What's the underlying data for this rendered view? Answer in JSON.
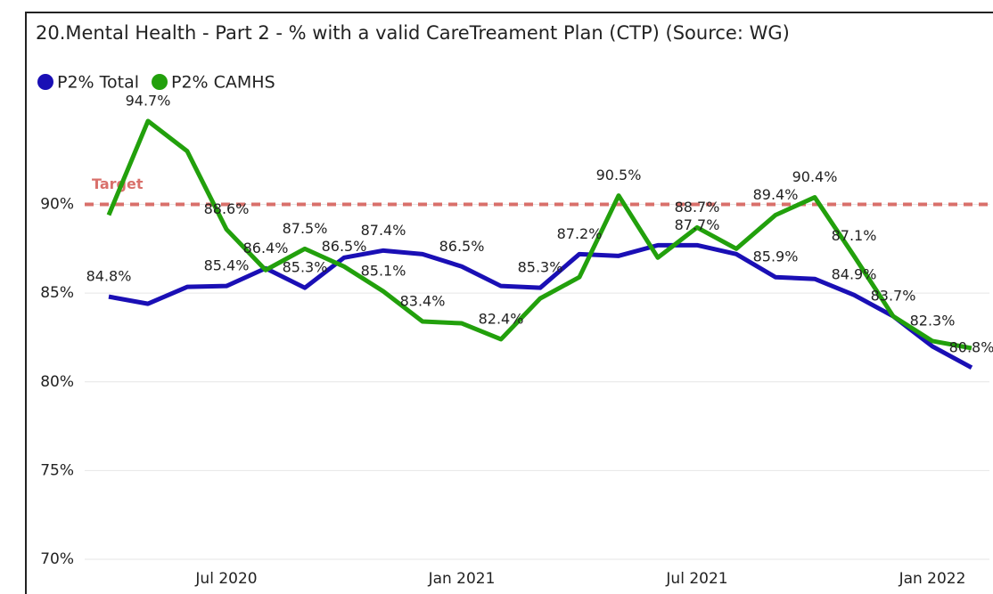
{
  "chart_data": {
    "type": "line",
    "title": "20.Mental Health - Part 2 - % with a valid CareTreament Plan (CTP) (Source: WG)",
    "categories": [
      null,
      null,
      null,
      "Jul 2020",
      null,
      null,
      null,
      null,
      null,
      "Jan 2021",
      null,
      null,
      null,
      null,
      null,
      "Jul 2021",
      null,
      null,
      null,
      null,
      null,
      "Jan 2022",
      null
    ],
    "series": [
      {
        "name": "P2% Total",
        "color": "#1a0fb5",
        "values": [
          84.8,
          84.4,
          85.35,
          85.4,
          86.4,
          85.3,
          87.0,
          87.4,
          87.2,
          86.5,
          85.4,
          85.3,
          87.2,
          87.1,
          87.7,
          87.7,
          87.2,
          85.9,
          85.8,
          84.9,
          83.7,
          82.0,
          80.8
        ],
        "value_labels": [
          "84.8%",
          null,
          null,
          "85.4%",
          "86.4%",
          "85.3%",
          null,
          "87.4%",
          null,
          "86.5%",
          null,
          "85.3%",
          "87.2%",
          null,
          null,
          "87.7%",
          null,
          "85.9%",
          null,
          "84.9%",
          null,
          null,
          "80.8%"
        ]
      },
      {
        "name": "P2% CAMHS",
        "color": "#22a00c",
        "values": [
          89.4,
          94.7,
          93.0,
          88.6,
          86.3,
          87.5,
          86.5,
          85.1,
          83.4,
          83.3,
          82.4,
          84.7,
          85.9,
          90.5,
          87.0,
          88.7,
          87.5,
          89.4,
          90.4,
          87.1,
          83.7,
          82.3,
          81.9
        ],
        "value_labels": [
          null,
          "94.7%",
          null,
          "88.6%",
          null,
          "87.5%",
          "86.5%",
          "85.1%",
          "83.4%",
          null,
          "82.4%",
          null,
          null,
          "90.5%",
          null,
          "88.7%",
          null,
          "89.4%",
          "90.4%",
          "87.1%",
          "83.7%",
          "82.3%",
          null
        ]
      }
    ],
    "target": {
      "label": "Target",
      "value": 90,
      "color": "#d9706b"
    },
    "ylim": [
      70,
      96
    ],
    "yticks": [
      {
        "value": 70,
        "label": "70%"
      },
      {
        "value": 75,
        "label": "75%"
      },
      {
        "value": 80,
        "label": "80%"
      },
      {
        "value": 85,
        "label": "85%"
      },
      {
        "value": 90,
        "label": "90%"
      }
    ],
    "grid": true,
    "legend": "top-left"
  }
}
